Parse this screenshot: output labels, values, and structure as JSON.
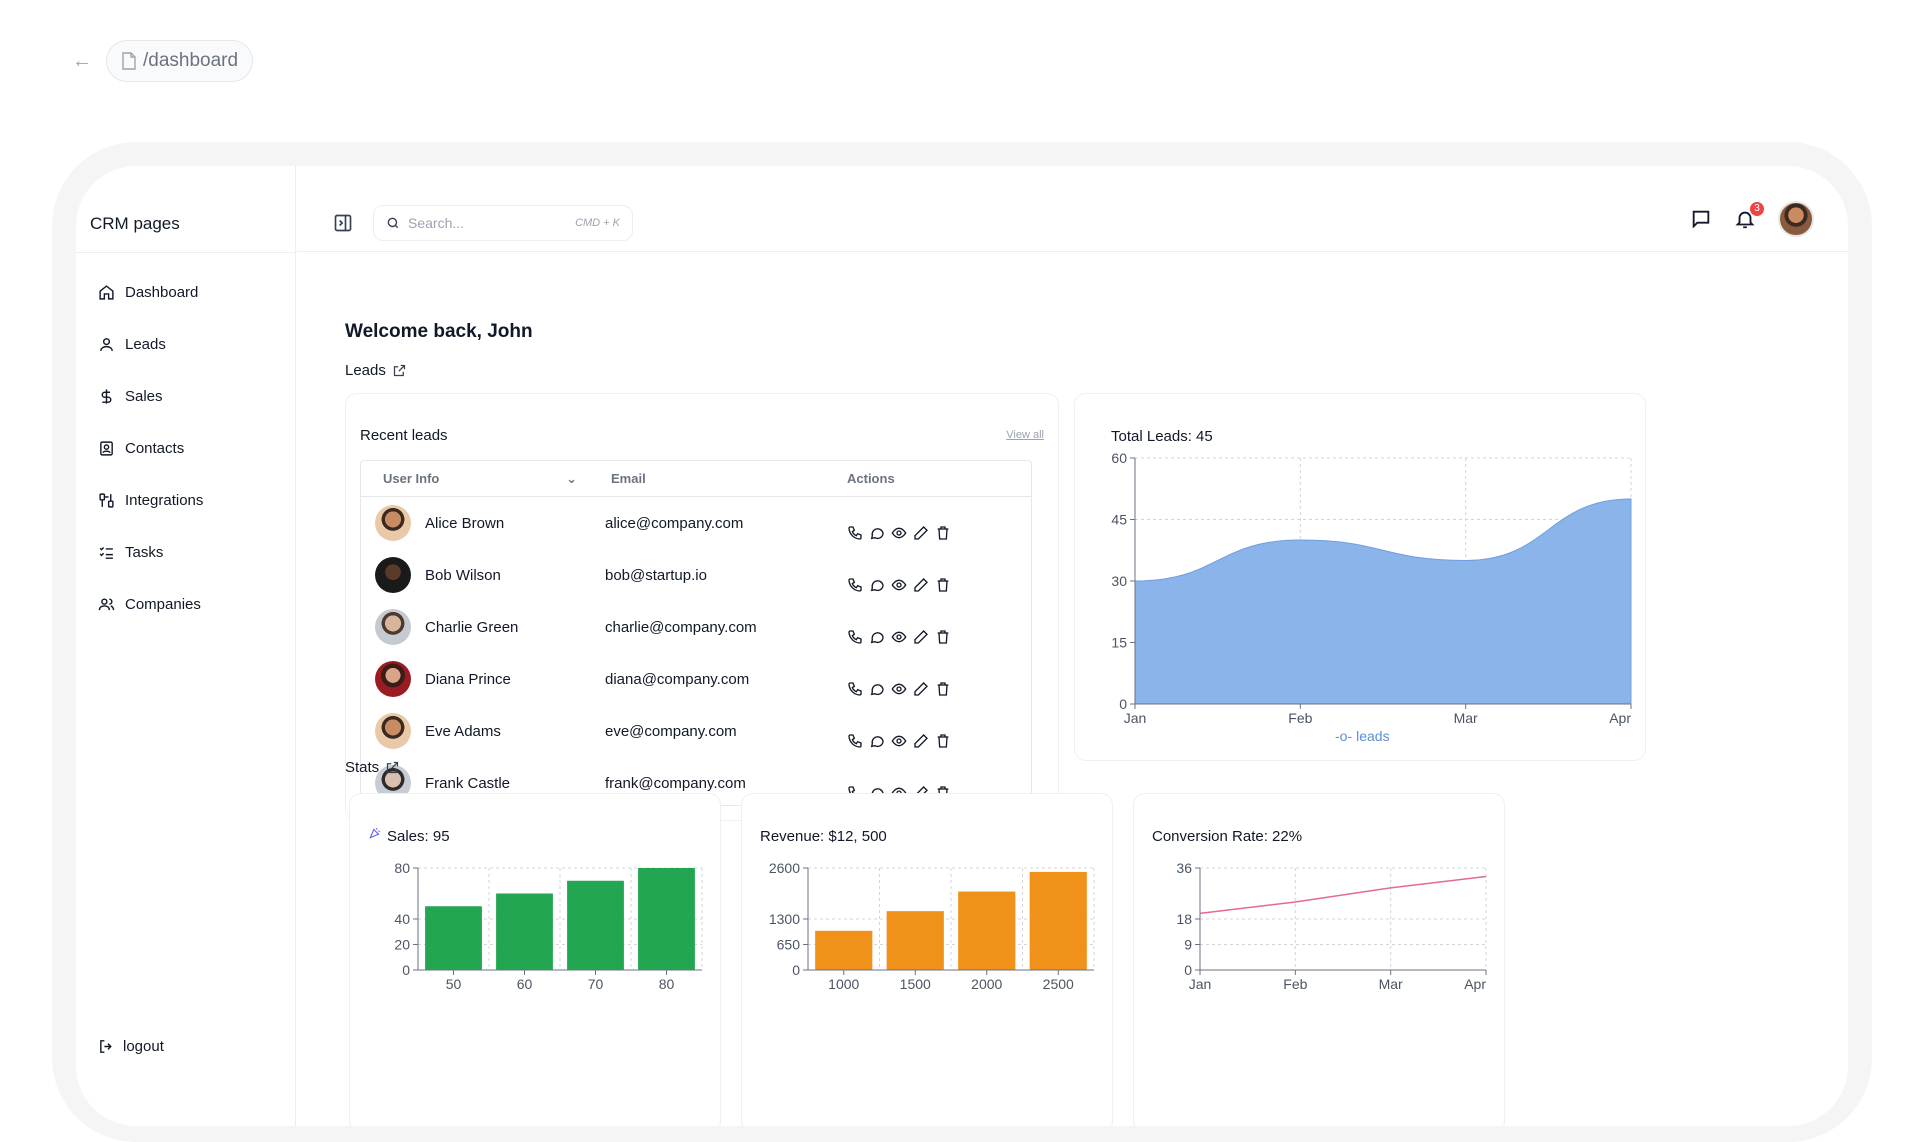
{
  "url": {
    "path": "/dashboard"
  },
  "sidebar": {
    "title": "CRM pages",
    "items": [
      {
        "label": "Dashboard",
        "icon": "home-icon"
      },
      {
        "label": "Leads",
        "icon": "user-icon"
      },
      {
        "label": "Sales",
        "icon": "dollar-icon"
      },
      {
        "label": "Contacts",
        "icon": "contact-book-icon"
      },
      {
        "label": "Integrations",
        "icon": "integrations-icon"
      },
      {
        "label": "Tasks",
        "icon": "list-checks-icon"
      },
      {
        "label": "Companies",
        "icon": "users-icon"
      }
    ],
    "logout": "logout"
  },
  "header": {
    "search_placeholder": "Search...",
    "search_shortcut": "CMD + K",
    "notification_count": "3"
  },
  "main": {
    "welcome": "Welcome back, John",
    "leads_section": "Leads",
    "stats_section": "Stats",
    "recent_leads": {
      "title": "Recent leads",
      "view_all": "View all",
      "columns": {
        "user": "User Info",
        "email": "Email",
        "actions": "Actions"
      },
      "rows": [
        {
          "name": "Alice Brown",
          "email": "alice@company.com"
        },
        {
          "name": "Bob Wilson",
          "email": "bob@startup.io"
        },
        {
          "name": "Charlie Green",
          "email": "charlie@company.com"
        },
        {
          "name": "Diana Prince",
          "email": "diana@company.com"
        },
        {
          "name": "Eve Adams",
          "email": "eve@company.com"
        },
        {
          "name": "Frank Castle",
          "email": "frank@company.com"
        }
      ]
    }
  },
  "chart_data": [
    {
      "type": "area",
      "title": "Total Leads: 45",
      "categories": [
        "Jan",
        "Feb",
        "Mar",
        "Apr"
      ],
      "series": [
        {
          "name": "leads",
          "values": [
            30,
            40,
            35,
            50
          ]
        }
      ],
      "ylim": [
        0,
        60
      ],
      "yticks": [
        0,
        15,
        30,
        45,
        60
      ],
      "color": "#8ab4ea",
      "grid": true,
      "legend": "bottom"
    },
    {
      "type": "bar",
      "title": "Sales: 95",
      "categories": [
        "50",
        "60",
        "70",
        "80"
      ],
      "values": [
        50,
        60,
        70,
        80
      ],
      "ylim": [
        0,
        80
      ],
      "yticks": [
        0,
        20,
        40,
        80
      ],
      "color": "#22a652",
      "grid": true
    },
    {
      "type": "bar",
      "title": "Revenue: $12, 500",
      "categories": [
        "1000",
        "1500",
        "2000",
        "2500"
      ],
      "values": [
        1000,
        1500,
        2000,
        2500
      ],
      "ylim": [
        0,
        2600
      ],
      "yticks": [
        0,
        650,
        1300,
        2600
      ],
      "color": "#f0921a",
      "grid": true
    },
    {
      "type": "line",
      "title": "Conversion Rate: 22%",
      "categories": [
        "Jan",
        "Feb",
        "Mar",
        "Apr"
      ],
      "values": [
        20,
        24,
        29,
        33
      ],
      "ylim": [
        0,
        36
      ],
      "yticks": [
        0,
        9,
        18,
        36
      ],
      "color": "#e56b8a",
      "grid": true
    }
  ]
}
